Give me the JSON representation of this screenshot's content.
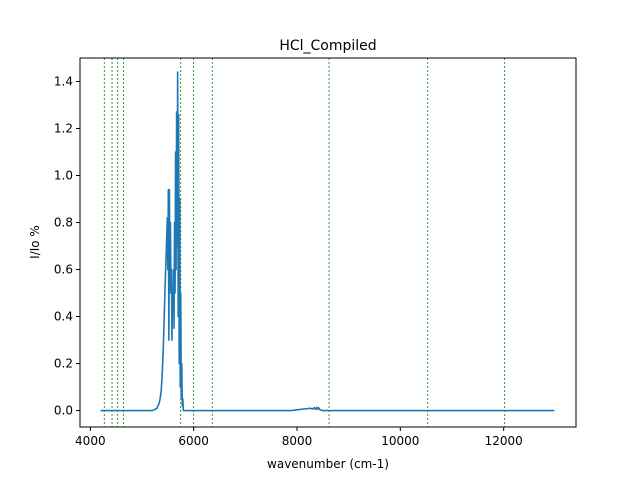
{
  "chart_data": {
    "type": "line",
    "title": "HCl_Compiled",
    "xlabel": "wavenumber (cm-1)",
    "ylabel": "I/Io %",
    "xlim": [
      3800,
      13400
    ],
    "ylim": [
      -0.07,
      1.5
    ],
    "x_ticks": [
      4000,
      6000,
      8000,
      10000,
      12000
    ],
    "x_tick_labels": [
      "4000",
      "6000",
      "8000",
      "10000",
      "12000"
    ],
    "y_ticks": [
      0.0,
      0.2,
      0.4,
      0.6,
      0.8,
      1.0,
      1.2,
      1.4
    ],
    "y_tick_labels": [
      "0.0",
      "0.2",
      "0.4",
      "0.6",
      "0.8",
      "1.0",
      "1.2",
      "1.4"
    ],
    "grid": false,
    "series_color": "#1f77b4",
    "reference_line_color": "#008000",
    "reference_lines_x": [
      4270,
      4420,
      4530,
      4640,
      5750,
      6000,
      6360,
      8620,
      10530,
      12020
    ],
    "series": [
      {
        "values_x": [
          4200,
          5200,
          5250,
          5290,
          5310,
          5330,
          5350,
          5370,
          5390,
          5410,
          5430,
          5450,
          5470,
          5490,
          5500,
          5510,
          5520,
          5530,
          5540,
          5550,
          5560,
          5570,
          5580,
          5590,
          5600,
          5610,
          5620,
          5630,
          5640,
          5650,
          5660,
          5670,
          5680,
          5690,
          5700,
          5710,
          5720,
          5730,
          5740,
          5750,
          5760,
          5770,
          5780,
          5790,
          5800,
          5850,
          7900,
          8000,
          8100,
          8200,
          8260,
          8300,
          8330,
          8360,
          8380,
          8400,
          8420,
          8440,
          8500,
          12980
        ],
        "values_y": [
          0.0,
          0.0,
          0.005,
          0.01,
          0.02,
          0.03,
          0.05,
          0.08,
          0.15,
          0.25,
          0.4,
          0.55,
          0.68,
          0.82,
          0.6,
          0.94,
          0.3,
          0.94,
          0.5,
          0.8,
          0.55,
          0.6,
          0.3,
          0.5,
          0.45,
          0.6,
          0.35,
          0.8,
          0.5,
          1.1,
          0.6,
          1.27,
          0.7,
          1.44,
          0.4,
          1.26,
          0.2,
          0.9,
          0.1,
          0.5,
          0.05,
          0.2,
          0.02,
          0.05,
          0.0,
          0.0,
          0.0,
          0.003,
          0.006,
          0.008,
          0.01,
          0.006,
          0.012,
          0.005,
          0.014,
          0.006,
          0.012,
          0.004,
          0.0,
          0.0
        ]
      }
    ]
  }
}
